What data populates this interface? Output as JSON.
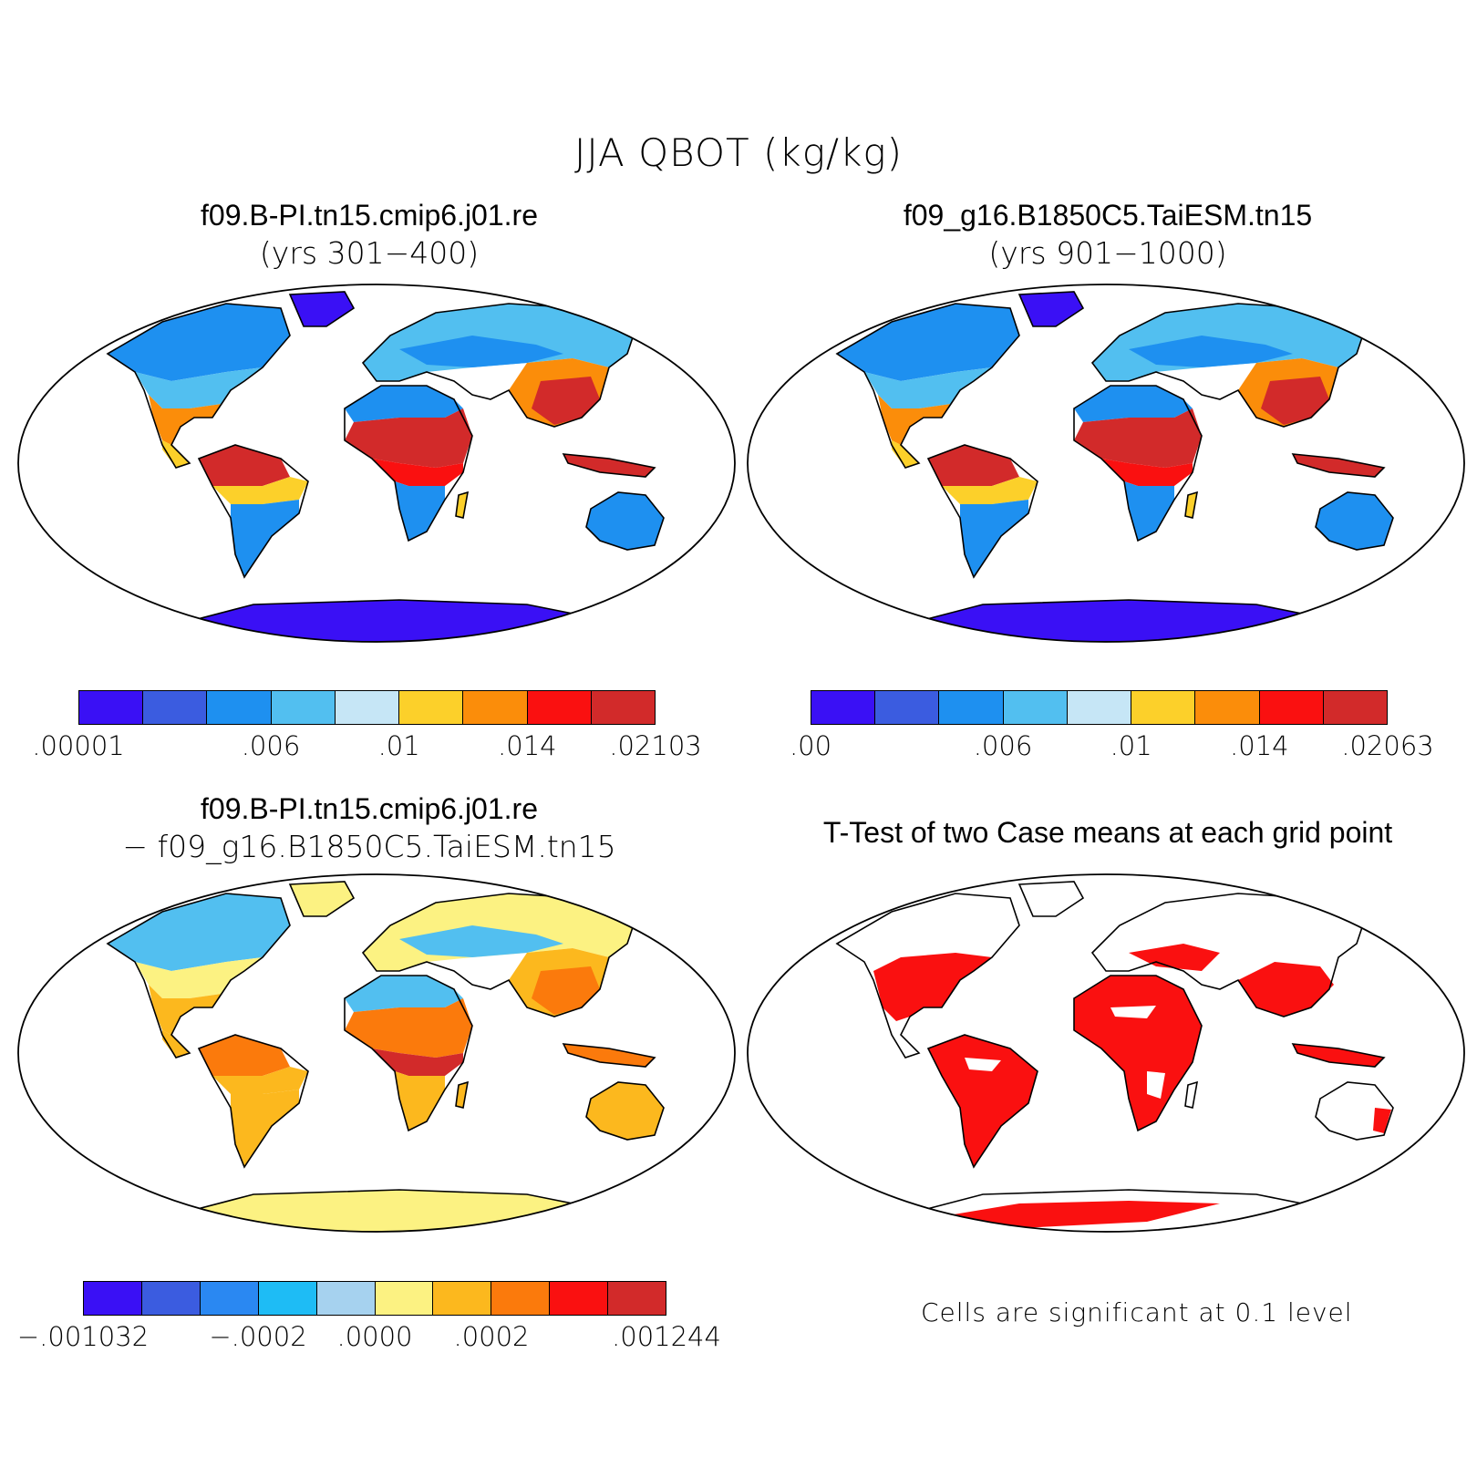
{
  "title": "JJA QBOT (kg/kg)",
  "panels": {
    "case1": {
      "title": "f09.B-PI.tn15.cmip6.j01.re",
      "subtitle": "(yrs 301−400)"
    },
    "case2": {
      "title": "f09_g16.B1850C5.TaiESM.tn15",
      "subtitle": "(yrs 901−1000)"
    },
    "diff": {
      "title": "f09.B-PI.tn15.cmip6.j01.re",
      "subtitle": "− f09_g16.B1850C5.TaiESM.tn15"
    },
    "ttest": {
      "title": "T-Test of two Case means at each grid point",
      "note": "Cells are significant at 0.1 level"
    }
  },
  "colorbars": {
    "case1": {
      "colors": [
        "#3a10f5",
        "#3b5ce0",
        "#1e90f0",
        "#52bff0",
        "#c6e6f6",
        "#fcd02a",
        "#fb8d0a",
        "#fa1010",
        "#d22a2a"
      ],
      "labels": [
        ".00001",
        ".006",
        ".01",
        ".014",
        ".02103"
      ],
      "label_positions": [
        0,
        3,
        5,
        7,
        9
      ]
    },
    "case2": {
      "colors": [
        "#3a10f5",
        "#3b5ce0",
        "#1e90f0",
        "#52bff0",
        "#c6e6f6",
        "#fcd02a",
        "#fb8d0a",
        "#fa1010",
        "#d22a2a"
      ],
      "labels": [
        ".00",
        ".006",
        ".01",
        ".014",
        ".02063"
      ],
      "label_positions": [
        0,
        3,
        5,
        7,
        9
      ]
    },
    "diff": {
      "colors": [
        "#3a10f5",
        "#3b5ce0",
        "#2a88f2",
        "#1ebcf5",
        "#a6d2ef",
        "#fcf282",
        "#fcb81e",
        "#fb7a0c",
        "#fa1010",
        "#d22a2a"
      ],
      "labels": [
        "−.001032",
        "−.0002",
        ".0000",
        ".0002",
        ".001244"
      ],
      "label_positions": [
        0,
        3,
        5,
        7,
        10
      ]
    }
  },
  "map_colors": {
    "case1": {
      "high_north": "#1e90f0",
      "mid_north": "#52bff0",
      "warm": "#fb8d0a",
      "tropics": "#d22a2a",
      "tropics_edge": "#fa1010",
      "subtropic": "#fcd02a",
      "south": "#1e90f0",
      "antarctica": "#3a10f5"
    },
    "case2": {
      "high_north": "#1e90f0",
      "mid_north": "#52bff0",
      "warm": "#fb8d0a",
      "tropics": "#d22a2a",
      "tropics_edge": "#fa1010",
      "subtropic": "#fcd02a",
      "south": "#1e90f0",
      "antarctica": "#3a10f5"
    },
    "diff": {
      "high_north": "#52bff0",
      "mid_north": "#fcf282",
      "warm": "#fcb81e",
      "tropics": "#fb7a0c",
      "tropics_edge": "#d22a2a",
      "subtropic": "#fcb81e",
      "south": "#fcb81e",
      "antarctica": "#fcf282"
    },
    "ttest": {
      "sig": "#fa1010"
    }
  }
}
